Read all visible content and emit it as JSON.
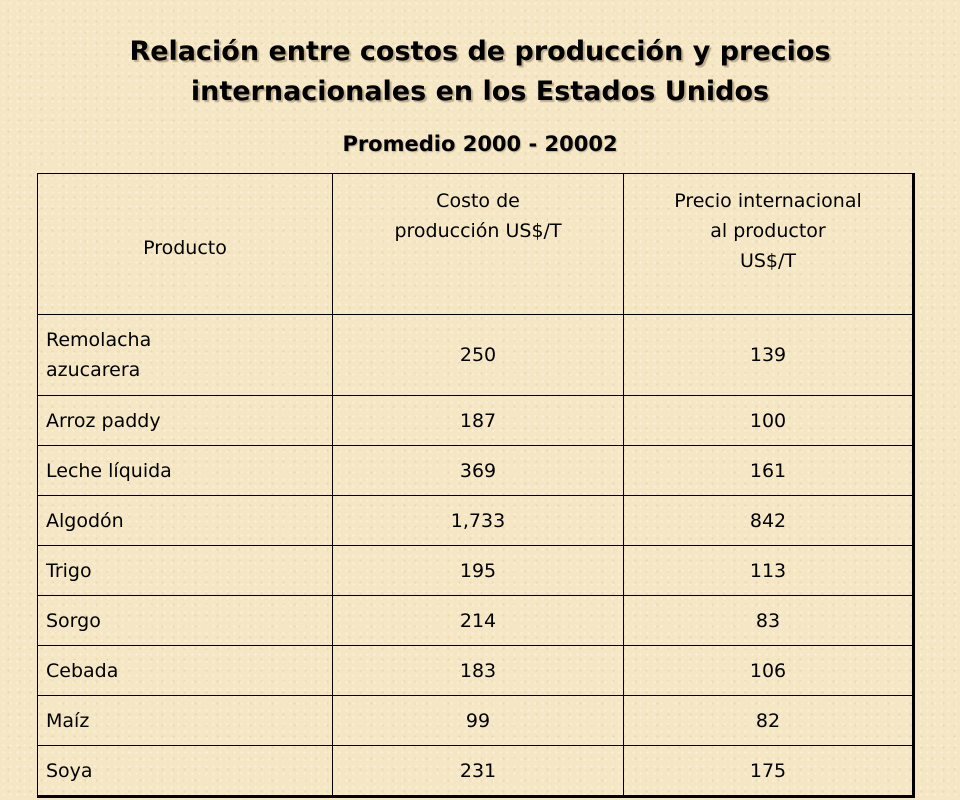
{
  "title_line1": "Relación entre costos de producción y precios",
  "title_line2": "internacionales en los Estados Unidos",
  "subtitle": "Promedio 2000 - 20002",
  "table": {
    "headers": {
      "producto": "Producto",
      "costo_line1": "Costo de",
      "costo_line2": "producción US$/T",
      "precio_line1": "Precio internacional",
      "precio_line2": "al productor",
      "precio_line3": "US$/T"
    },
    "rows": [
      {
        "producto_line1": "Remolacha",
        "producto_line2": "azucarera",
        "costo": "250",
        "precio": "139"
      },
      {
        "producto_line1": "Arroz paddy",
        "producto_line2": "",
        "costo": "187",
        "precio": "100"
      },
      {
        "producto_line1": "Leche líquida",
        "producto_line2": "",
        "costo": "369",
        "precio": "161"
      },
      {
        "producto_line1": "Algodón",
        "producto_line2": "",
        "costo": "1,733",
        "precio": "842"
      },
      {
        "producto_line1": "Trigo",
        "producto_line2": "",
        "costo": "195",
        "precio": "113"
      },
      {
        "producto_line1": "Sorgo",
        "producto_line2": "",
        "costo": "214",
        "precio": "83"
      },
      {
        "producto_line1": "Cebada",
        "producto_line2": "",
        "costo": "183",
        "precio": "106"
      },
      {
        "producto_line1": "Maíz",
        "producto_line2": "",
        "costo": "99",
        "precio": "82"
      },
      {
        "producto_line1": "Soya",
        "producto_line2": "",
        "costo": "231",
        "precio": "175"
      }
    ]
  },
  "colors": {
    "background": "#f5e7c4",
    "text": "#000000"
  }
}
